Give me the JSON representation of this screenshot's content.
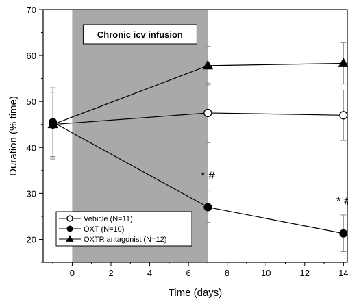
{
  "chart_data": {
    "type": "line",
    "xlabel": "Time (days)",
    "ylabel": "Duration (% time)",
    "xlim": [
      -1.5,
      14.2
    ],
    "ylim": [
      15,
      70
    ],
    "xticks": [
      0,
      2,
      4,
      6,
      8,
      10,
      12,
      14
    ],
    "yticks": [
      20,
      30,
      40,
      50,
      60,
      70
    ],
    "grid": false,
    "legend_position": "bottom-left",
    "shaded_region": {
      "x_start": 0,
      "x_end": 7,
      "label": "Chronic icv infusion",
      "color": "#a9a9a9"
    },
    "series": [
      {
        "name": "Vehicle (N=11)",
        "marker": "open-circle",
        "x": [
          -1,
          7,
          14
        ],
        "y": [
          45,
          47.5,
          47
        ],
        "err": [
          7.5,
          6.5,
          5.5
        ]
      },
      {
        "name": "OXT (N=10)",
        "marker": "filled-circle",
        "x": [
          -1,
          7,
          14
        ],
        "y": [
          45.5,
          27,
          21.3
        ],
        "err": [
          7.5,
          3.3,
          4
        ]
      },
      {
        "name": "OXTR antagonist (N=12)",
        "marker": "filled-triangle",
        "x": [
          -1,
          7,
          14
        ],
        "y": [
          45,
          57.8,
          58.3
        ],
        "err": [
          7,
          4.2,
          4.5
        ]
      }
    ],
    "annotations": [
      {
        "text": "* #",
        "x": 7,
        "y": 33
      },
      {
        "text": "* #",
        "x": 14,
        "y": 27.5
      }
    ]
  }
}
